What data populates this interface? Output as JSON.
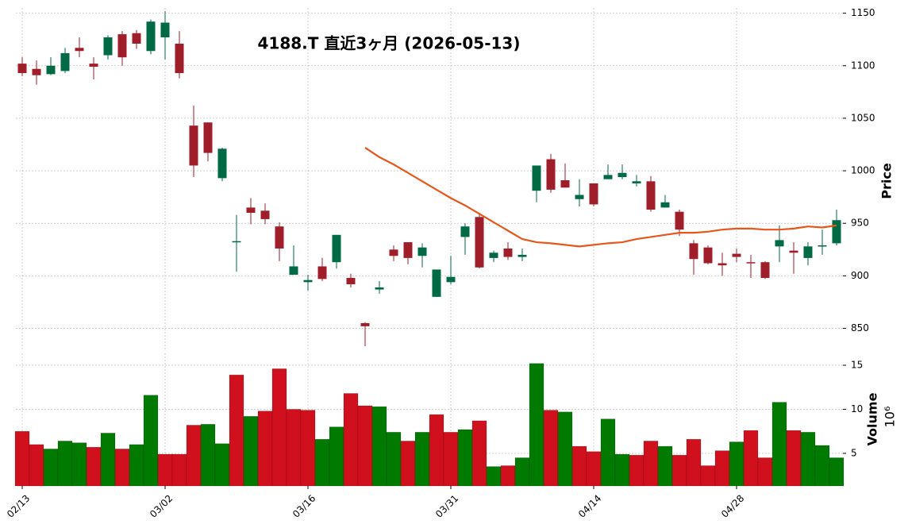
{
  "chart_data": {
    "type": "candlestick",
    "title": "4188.T  直近3ヶ月  (2026-05-13)",
    "categories": [
      "02/13",
      null,
      null,
      null,
      null,
      null,
      null,
      null,
      null,
      null,
      "03/02",
      null,
      null,
      null,
      null,
      null,
      null,
      null,
      null,
      null,
      "03/16",
      null,
      null,
      null,
      null,
      null,
      null,
      null,
      null,
      null,
      "03/31",
      null,
      null,
      null,
      null,
      null,
      null,
      null,
      null,
      null,
      "04/14",
      null,
      null,
      null,
      null,
      null,
      null,
      null,
      null,
      null,
      "04/28",
      null,
      null,
      null,
      null,
      null,
      null,
      null
    ],
    "open": [
      1102,
      1097,
      1092,
      1095,
      1117,
      1102,
      1110,
      1130,
      1131,
      1114,
      1127,
      1121,
      1043,
      1046,
      993,
      932,
      965,
      962,
      947,
      901,
      894,
      909,
      913,
      898,
      855,
      887,
      925,
      932,
      919,
      880,
      894,
      937,
      956,
      917,
      926,
      918,
      981,
      1011,
      991,
      973,
      988,
      992,
      994,
      988,
      990,
      965,
      961,
      931,
      927,
      912,
      921,
      913,
      913,
      928,
      924,
      917,
      928,
      931
    ],
    "high": [
      1108,
      1105,
      1108,
      1117,
      1127,
      1108,
      1129,
      1133,
      1134,
      1144,
      1152,
      1133,
      1062,
      1046,
      1022,
      958,
      974,
      969,
      951,
      929,
      901,
      917,
      939,
      902,
      856,
      895,
      929,
      932,
      931,
      906,
      919,
      950,
      960,
      924,
      932,
      926,
      1005,
      1016,
      1007,
      992,
      988,
      1006,
      1006,
      996,
      995,
      977,
      963,
      934,
      929,
      922,
      926,
      920,
      914,
      948,
      932,
      932,
      944,
      963
    ],
    "low": [
      1090,
      1082,
      1091,
      1093,
      1108,
      1087,
      1106,
      1100,
      1116,
      1111,
      1106,
      1088,
      994,
      1009,
      990,
      904,
      949,
      949,
      914,
      901,
      886,
      895,
      907,
      889,
      833,
      883,
      914,
      911,
      908,
      880,
      892,
      920,
      907,
      913,
      915,
      914,
      970,
      979,
      984,
      966,
      966,
      992,
      992,
      985,
      961,
      965,
      938,
      901,
      911,
      900,
      913,
      898,
      897,
      913,
      902,
      910,
      920,
      929
    ],
    "close": [
      1093,
      1091,
      1100,
      1112,
      1114,
      1099,
      1127,
      1108,
      1121,
      1142,
      1141,
      1093,
      1005,
      1017,
      1021,
      933,
      960,
      954,
      926,
      909,
      896,
      897,
      939,
      892,
      852,
      889,
      919,
      917,
      927,
      906,
      899,
      947,
      908,
      922,
      918,
      920,
      1005,
      982,
      984,
      977,
      968,
      996,
      998,
      990,
      963,
      970,
      944,
      916,
      912,
      910,
      918,
      912,
      898,
      934,
      922,
      928,
      929,
      953
    ],
    "up_color": "#006a44",
    "down_color": "#a01e2a",
    "ylabel": "Price",
    "ylim": [
      830,
      1155
    ],
    "yticks": [
      850,
      900,
      950,
      1000,
      1050,
      1100,
      1150
    ],
    "grid": true,
    "moving_average": {
      "color": "#e8561a",
      "values": [
        null,
        null,
        null,
        null,
        null,
        null,
        null,
        null,
        null,
        null,
        null,
        null,
        null,
        null,
        null,
        null,
        null,
        null,
        null,
        null,
        null,
        null,
        null,
        null,
        1022,
        1013,
        1006,
        998,
        990,
        982,
        974,
        967,
        959,
        951,
        943,
        935,
        932,
        931,
        929.5,
        928,
        929.5,
        931,
        932,
        935,
        937,
        939,
        941,
        941,
        942,
        944,
        945,
        945,
        944,
        944,
        945,
        947,
        946,
        948
      ]
    },
    "volume": {
      "ylabel": "Volume",
      "exponent_label": "10⁶",
      "values": [
        7.5,
        6.0,
        5.5,
        6.4,
        6.2,
        5.7,
        7.3,
        5.5,
        6.0,
        11.6,
        4.9,
        4.9,
        8.2,
        8.3,
        6.1,
        13.9,
        9.2,
        9.8,
        14.6,
        10.0,
        9.9,
        6.6,
        8.0,
        11.8,
        10.4,
        10.3,
        7.4,
        6.4,
        7.4,
        9.4,
        7.4,
        7.7,
        8.7,
        3.5,
        3.6,
        4.5,
        15.2,
        9.9,
        9.7,
        5.8,
        5.2,
        8.9,
        4.9,
        4.8,
        6.4,
        5.8,
        4.8,
        6.6,
        3.6,
        5.3,
        6.3,
        7.6,
        4.5,
        10.8,
        7.6,
        7.4,
        5.9,
        4.5
      ],
      "colors": [
        "#d0101c",
        "#d0101c",
        "#007a00",
        "#007a00",
        "#007a00",
        "#d0101c",
        "#007a00",
        "#d0101c",
        "#007a00",
        "#007a00",
        "#d0101c",
        "#d0101c",
        "#d0101c",
        "#007a00",
        "#007a00",
        "#d0101c",
        "#007a00",
        "#d0101c",
        "#d0101c",
        "#d0101c",
        "#d0101c",
        "#007a00",
        "#007a00",
        "#d0101c",
        "#d0101c",
        "#007a00",
        "#007a00",
        "#d0101c",
        "#007a00",
        "#d0101c",
        "#d0101c",
        "#007a00",
        "#d0101c",
        "#007a00",
        "#d0101c",
        "#007a00",
        "#007a00",
        "#d0101c",
        "#007a00",
        "#d0101c",
        "#d0101c",
        "#007a00",
        "#007a00",
        "#d0101c",
        "#d0101c",
        "#007a00",
        "#d0101c",
        "#d0101c",
        "#d0101c",
        "#d0101c",
        "#007a00",
        "#d0101c",
        "#d0101c",
        "#007a00",
        "#d0101c",
        "#007a00",
        "#007a00",
        "#007a00"
      ],
      "ylim": [
        1.3,
        16.35
      ],
      "yticks": [
        5,
        10,
        15
      ]
    }
  }
}
